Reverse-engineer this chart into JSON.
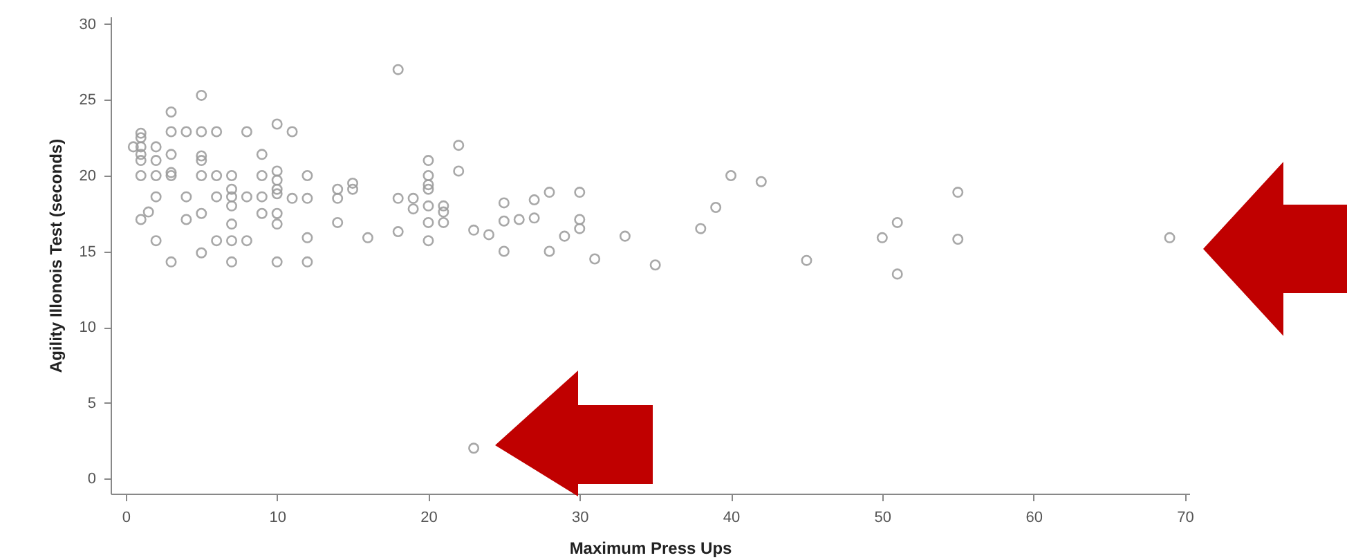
{
  "chart_data": {
    "type": "scatter",
    "xlabel": "Maximum Press Ups",
    "ylabel": "Agility Illonois Test (seconds)",
    "xlim": [
      -1,
      70.3
    ],
    "ylim": [
      -1,
      30.5
    ],
    "xticks": [
      0,
      10,
      20,
      30,
      40,
      50,
      60,
      70
    ],
    "yticks": [
      0,
      5,
      10,
      15,
      20,
      25,
      30
    ],
    "grid": false,
    "marker": "circle",
    "series": [
      {
        "color": "#9a9a9a",
        "x": [
          0.5,
          1,
          1,
          1,
          1,
          1,
          1,
          1.5,
          1,
          2,
          2,
          2,
          2,
          2,
          3,
          3,
          3,
          3,
          3,
          3,
          4,
          4,
          4,
          5,
          5,
          5,
          5,
          5,
          5,
          5,
          6,
          6,
          6,
          6,
          7,
          7,
          7,
          7,
          7,
          7,
          7,
          8,
          8,
          8,
          9,
          9,
          9,
          9,
          10,
          10,
          10,
          10,
          10,
          10,
          10,
          10,
          11,
          11,
          12,
          12,
          12,
          12,
          14,
          14,
          14,
          15,
          15,
          16,
          18,
          18,
          18,
          19,
          19,
          20,
          20,
          20,
          20,
          20,
          20,
          20,
          21,
          21,
          21,
          22,
          22,
          23,
          24,
          23,
          25,
          25,
          25,
          26,
          27,
          27,
          28,
          28,
          29,
          30,
          30,
          30,
          31,
          33,
          35,
          38,
          39,
          40,
          42,
          45,
          50,
          51,
          51,
          55,
          55,
          69
        ],
        "values": [
          21.9,
          22.8,
          22.5,
          21.9,
          21.4,
          21.0,
          20.0,
          17.6,
          17.1,
          21.9,
          21.0,
          20.0,
          18.6,
          15.7,
          24.2,
          22.9,
          21.4,
          20.2,
          20.0,
          14.3,
          22.9,
          18.6,
          17.1,
          25.3,
          22.9,
          21.3,
          21.0,
          20.0,
          17.5,
          14.9,
          22.9,
          20.0,
          18.6,
          15.7,
          20.0,
          19.1,
          18.6,
          18.0,
          16.8,
          15.7,
          14.3,
          22.9,
          18.6,
          15.7,
          21.4,
          20.0,
          18.6,
          17.5,
          23.4,
          20.3,
          19.7,
          19.1,
          18.8,
          17.5,
          16.8,
          14.3,
          22.9,
          18.5,
          20.0,
          18.5,
          15.9,
          14.3,
          19.1,
          18.5,
          16.9,
          19.5,
          19.1,
          15.9,
          27.0,
          18.5,
          16.3,
          18.5,
          17.8,
          21.0,
          20.0,
          19.4,
          19.1,
          18.0,
          16.9,
          15.7,
          18.0,
          17.6,
          16.9,
          22.0,
          20.3,
          16.4,
          16.1,
          2.0,
          18.2,
          17.0,
          15.0,
          17.1,
          18.4,
          17.2,
          18.9,
          15.0,
          16.0,
          18.9,
          17.1,
          16.5,
          14.5,
          16.0,
          14.1,
          16.5,
          17.9,
          20.0,
          19.6,
          14.4,
          15.9,
          16.9,
          13.5,
          18.9,
          15.8,
          15.9
        ]
      }
    ]
  }
}
